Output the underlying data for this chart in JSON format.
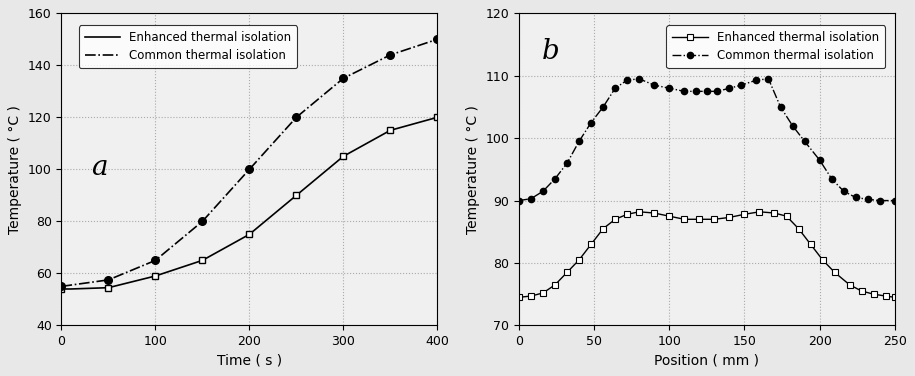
{
  "plot_a": {
    "title": "a",
    "xlabel": "Time（s）",
    "xlabel_display": "Time ( s )",
    "ylabel": "Temperature ( °C )",
    "xlim": [
      0,
      400
    ],
    "ylim": [
      40,
      160
    ],
    "yticks": [
      40,
      60,
      80,
      100,
      120,
      140,
      160
    ],
    "xticks": [
      0,
      100,
      200,
      300,
      400
    ],
    "enhanced_x": [
      0,
      10,
      50,
      100,
      150,
      200,
      250,
      300,
      350,
      400
    ],
    "enhanced_y": [
      54,
      54,
      54.5,
      59,
      65,
      75,
      90,
      105,
      115,
      120
    ],
    "common_x": [
      0,
      10,
      50,
      100,
      150,
      200,
      250,
      300,
      350,
      400
    ],
    "common_y": [
      55,
      55.5,
      57.5,
      65,
      80,
      100,
      120,
      135,
      144,
      150
    ],
    "legend_enhanced": "Enhanced thermal isolation",
    "legend_common": "Common thermal isolation"
  },
  "plot_b": {
    "title": "b",
    "xlabel": "Position ( mm )",
    "ylabel": "Temperature ( °C )",
    "xlim": [
      0,
      250
    ],
    "ylim": [
      70,
      120
    ],
    "yticks": [
      70,
      80,
      90,
      100,
      110,
      120
    ],
    "xticks": [
      0,
      50,
      100,
      150,
      200,
      250
    ],
    "enhanced_x": [
      0,
      8,
      16,
      24,
      32,
      40,
      48,
      56,
      64,
      72,
      80,
      90,
      100,
      110,
      120,
      130,
      140,
      150,
      160,
      170,
      178,
      186,
      194,
      202,
      210,
      220,
      228,
      236,
      244,
      250
    ],
    "enhanced_y": [
      74.5,
      74.7,
      75.2,
      76.5,
      78.5,
      80.5,
      83.0,
      85.5,
      87.0,
      87.8,
      88.2,
      88.0,
      87.5,
      87.0,
      87.0,
      87.0,
      87.3,
      87.8,
      88.2,
      88.0,
      87.5,
      85.5,
      83.0,
      80.5,
      78.5,
      76.5,
      75.5,
      75.0,
      74.7,
      74.5
    ],
    "common_x": [
      0,
      8,
      16,
      24,
      32,
      40,
      48,
      56,
      64,
      72,
      80,
      90,
      100,
      110,
      118,
      125,
      132,
      140,
      148,
      158,
      166,
      174,
      182,
      190,
      200,
      208,
      216,
      224,
      232,
      240,
      250
    ],
    "common_y": [
      90.0,
      90.3,
      91.5,
      93.5,
      96.0,
      99.5,
      102.5,
      105.0,
      108.0,
      109.3,
      109.5,
      108.5,
      108.0,
      107.5,
      107.5,
      107.5,
      107.5,
      108.0,
      108.5,
      109.3,
      109.5,
      105.0,
      102.0,
      99.5,
      96.5,
      93.5,
      91.5,
      90.5,
      90.2,
      90.0,
      90.0
    ],
    "legend_enhanced": "Enhanced thermal isolation",
    "legend_common": "Common thermal isolation"
  },
  "bg_color": "#f0f0f0",
  "line_color": "#000000",
  "grid_color": "#aaaaaa"
}
